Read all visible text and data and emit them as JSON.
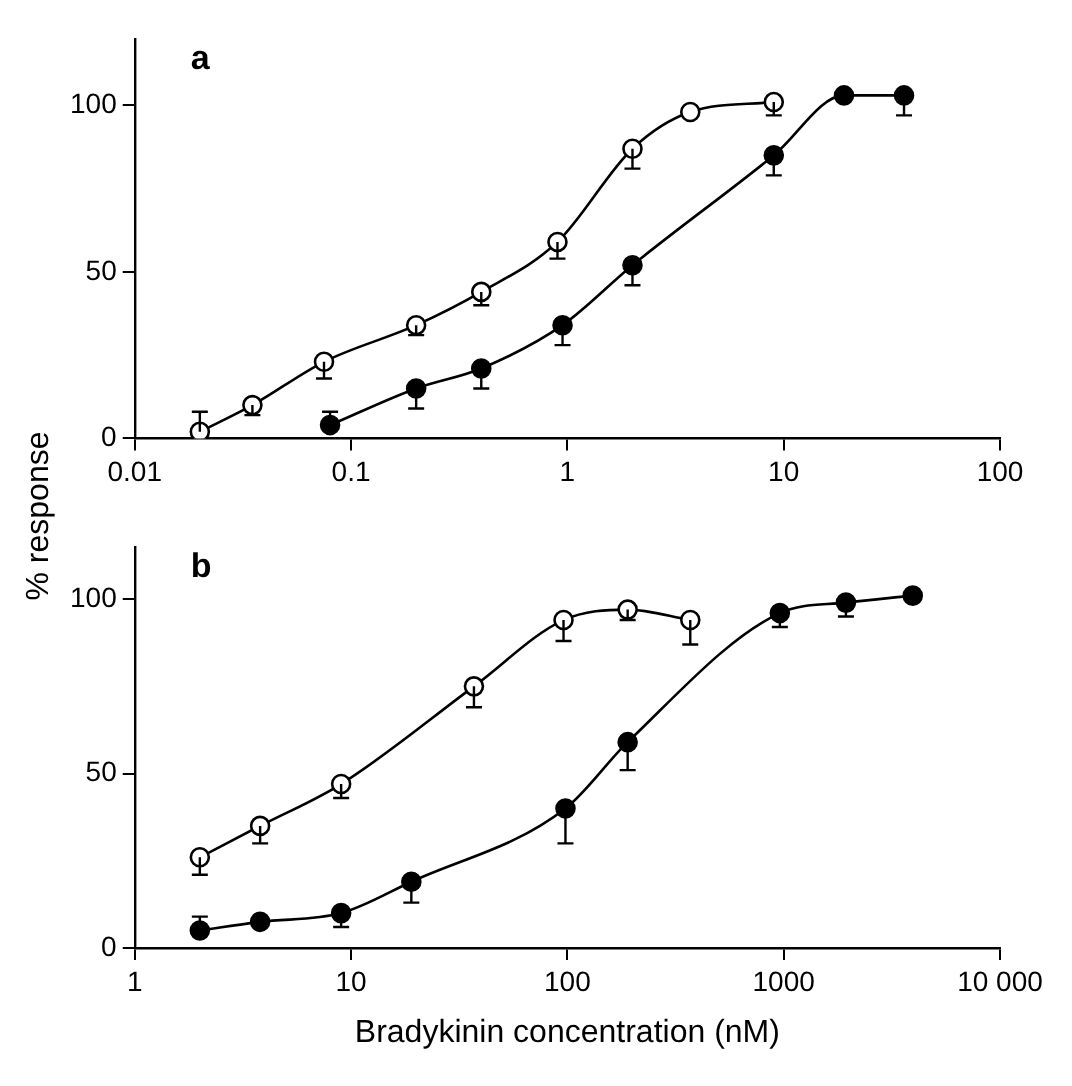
{
  "chart_data": [
    {
      "type": "line",
      "annotations": [
        "a"
      ],
      "ylabel": "% response",
      "log": "x",
      "marker": "circle",
      "line_style": "solid",
      "xlim": [
        0.01,
        100
      ],
      "xticks": [
        0.01,
        0.1,
        1,
        10,
        100
      ],
      "ylim": [
        0,
        120
      ],
      "yticks": [
        0,
        50,
        100
      ],
      "series": [
        {
          "color": "#ffffff",
          "x": [
            0.02,
            0.035,
            0.075,
            0.2,
            0.4,
            0.9,
            2,
            3.7,
            9
          ],
          "values": [
            2,
            10,
            23,
            34,
            44,
            59,
            87,
            98,
            101
          ],
          "errors": [
            [
              2,
              8
            ],
            [
              7,
              10
            ],
            [
              18,
              23
            ],
            [
              31,
              34
            ],
            [
              40,
              44
            ],
            [
              54,
              59
            ],
            [
              81,
              87
            ],
            null,
            [
              97,
              101
            ]
          ]
        },
        {
          "color": "#000000",
          "x": [
            0.08,
            0.2,
            0.4,
            0.95,
            2,
            9,
            19,
            36
          ],
          "values": [
            4,
            15,
            21,
            34,
            52,
            85,
            103,
            103
          ],
          "errors": [
            [
              4,
              8
            ],
            [
              9,
              15
            ],
            [
              15,
              21
            ],
            [
              28,
              34
            ],
            [
              46,
              52
            ],
            [
              79,
              85
            ],
            null,
            [
              97,
              103
            ]
          ]
        }
      ]
    },
    {
      "type": "line",
      "annotations": [
        "b"
      ],
      "xlabel": "Bradykinin concentration (nM)",
      "log": "x",
      "marker": "circle",
      "line_style": "solid",
      "xlim": [
        1,
        10000
      ],
      "xticks": [
        1,
        10,
        100,
        1000,
        {
          "value": 10000,
          "label": "10 000"
        }
      ],
      "ylim": [
        0,
        115
      ],
      "yticks": [
        0,
        50,
        100
      ],
      "series": [
        {
          "color": "#ffffff",
          "x": [
            2,
            3.8,
            9,
            37,
            96,
            190,
            370
          ],
          "values": [
            26,
            35,
            47,
            75,
            94,
            97,
            94
          ],
          "errors": [
            [
              21,
              26
            ],
            [
              30,
              35
            ],
            [
              43,
              47
            ],
            [
              69,
              75
            ],
            [
              88,
              94
            ],
            [
              94,
              97
            ],
            [
              87,
              94
            ]
          ]
        },
        {
          "color": "#000000",
          "x": [
            2,
            3.8,
            9,
            19,
            98,
            190,
            960,
            1940,
            3950
          ],
          "values": [
            5,
            7.5,
            10,
            19,
            40,
            59,
            96,
            99,
            101
          ],
          "errors": [
            [
              5,
              9
            ],
            null,
            [
              6,
              10
            ],
            [
              13,
              19
            ],
            [
              30,
              40
            ],
            [
              51,
              59
            ],
            [
              92,
              96
            ],
            [
              95,
              99
            ],
            null
          ]
        }
      ]
    }
  ]
}
